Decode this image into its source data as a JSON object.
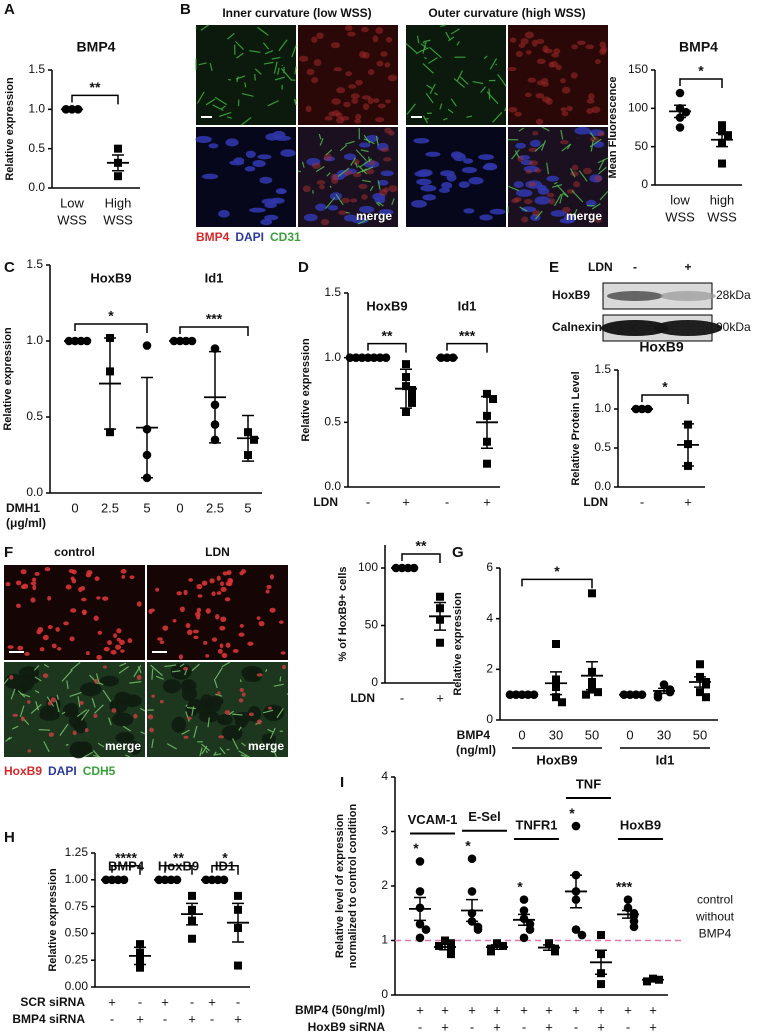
{
  "panel_labels": [
    "A",
    "B",
    "C",
    "D",
    "E",
    "F",
    "G",
    "H",
    "I"
  ],
  "images": {
    "B": {
      "columns": [
        "Inner curvature (low WSS)",
        "Outer curvature (high WSS)"
      ],
      "merge_labels": [
        "merge",
        "merge"
      ],
      "legend": [
        {
          "text": "BMP4",
          "color": "#d62728"
        },
        {
          "text": "DAPI",
          "color": "#2b3a9c"
        },
        {
          "text": "CD31",
          "color": "#3aa03a"
        }
      ]
    },
    "F": {
      "columns": [
        "control",
        "LDN"
      ],
      "merge_labels": [
        "merge",
        "merge"
      ],
      "legend": [
        {
          "text": "HoxB9",
          "color": "#d62728"
        },
        {
          "text": "DAPI",
          "color": "#2b3a9c"
        },
        {
          "text": "CDH5",
          "color": "#3aa03a"
        }
      ]
    }
  },
  "blot": {
    "treatment": "LDN",
    "lanes": [
      "-",
      "+"
    ],
    "rows": [
      "HoxB9",
      "Calnexin"
    ],
    "sizes": [
      "28kDa",
      "90kDa"
    ]
  },
  "chart_data": [
    {
      "type": "dot",
      "title": "BMP4",
      "ylabel": "Relative expression",
      "ylim": [
        0,
        1.5
      ],
      "yticks": [
        {
          "value": 0,
          "label": "0.0"
        },
        {
          "value": 0.5,
          "label": "0.5"
        },
        {
          "value": 1,
          "label": "1.0"
        },
        {
          "value": 1.5,
          "label": "1.5"
        }
      ],
      "groups": [
        {
          "marker": "circle",
          "values": [
            1,
            1,
            1
          ],
          "mean": 1,
          "sd": 0
        },
        {
          "marker": "square",
          "values": [
            0.5,
            0.32,
            0.15
          ],
          "mean": 0.32,
          "sd": 0.1
        }
      ],
      "brackets": [
        "**"
      ],
      "xrows": [
        {
          "values": [
            "Low",
            "High"
          ]
        },
        {
          "values": [
            "WSS",
            "WSS"
          ]
        }
      ]
    },
    {
      "type": "dot",
      "title": "BMP4",
      "ylabel": "Mean Fluorescence",
      "ylim": [
        0,
        150
      ],
      "yticks": [
        0,
        50,
        100,
        150
      ],
      "groups": [
        {
          "marker": "circle",
          "values": [
            120,
            100,
            95,
            88,
            75
          ],
          "mean": 96,
          "sd": 8
        },
        {
          "marker": "square",
          "values": [
            78,
            70,
            65,
            55,
            28
          ],
          "mean": 59,
          "sd": 9
        }
      ],
      "brackets": [
        "*"
      ],
      "xrows": [
        {
          "values": [
            "low",
            "high"
          ]
        },
        {
          "values": [
            "WSS",
            "WSS"
          ]
        }
      ]
    },
    {
      "type": "dot",
      "ylabel": "Relative expression",
      "ylim": [
        0,
        1.5
      ],
      "yticks": [
        {
          "value": 0,
          "label": "0.0"
        },
        {
          "value": 0.5,
          "label": "0.5"
        },
        {
          "value": 1,
          "label": "1.0"
        },
        {
          "value": 1.5,
          "label": "1.5"
        }
      ],
      "headers": [
        "HoxB9",
        "Id1"
      ],
      "groups": [
        {
          "marker": "circle",
          "values": [
            1,
            1,
            1,
            1
          ],
          "mean": 1,
          "sd": 0
        },
        {
          "marker": "square",
          "values": [
            1.02,
            0.8,
            0.4
          ],
          "mean": 0.72,
          "sd": 0.3
        },
        {
          "marker": "circle",
          "values": [
            0.97,
            0.42,
            0.25,
            0.1
          ],
          "mean": 0.43,
          "sd": 0.33
        },
        {
          "marker": "circle",
          "values": [
            1,
            1,
            1,
            1
          ],
          "mean": 1,
          "sd": 0
        },
        {
          "marker": "circle",
          "values": [
            0.95,
            0.58,
            0.45,
            0.35
          ],
          "mean": 0.63,
          "sd": 0.3
        },
        {
          "marker": "square",
          "values": [
            0.4,
            0.35,
            0.25
          ],
          "mean": 0.36,
          "sd": 0.15
        }
      ],
      "brackets": [
        "*",
        "***"
      ],
      "xrows": [
        {
          "label": "DMH1",
          "unit": "(μg/ml)",
          "values": [
            "0",
            "2.5",
            "5",
            "0",
            "2.5",
            "5"
          ]
        }
      ]
    },
    {
      "type": "dot",
      "ylabel": "Relative expression",
      "ylim": [
        0,
        1.5
      ],
      "yticks": [
        {
          "value": 0,
          "label": "0.0"
        },
        {
          "value": 0.5,
          "label": "0.5"
        },
        {
          "value": 1,
          "label": "1.0"
        },
        {
          "value": 1.5,
          "label": "1.5"
        }
      ],
      "headers": [
        "HoxB9",
        "Id1"
      ],
      "groups": [
        {
          "marker": "circle",
          "values": [
            1,
            1,
            1,
            1,
            1,
            1,
            1
          ],
          "mean": 1,
          "sd": 0
        },
        {
          "marker": "square",
          "values": [
            0.95,
            0.85,
            0.78,
            0.75,
            0.7,
            0.65,
            0.58
          ],
          "mean": 0.76,
          "sd": 0.15
        },
        {
          "marker": "circle",
          "values": [
            1,
            1,
            1
          ],
          "mean": 1,
          "sd": 0
        },
        {
          "marker": "square",
          "values": [
            0.72,
            0.68,
            0.55,
            0.35,
            0.18
          ],
          "mean": 0.5,
          "sd": 0.2
        }
      ],
      "brackets": [
        "**",
        "***"
      ],
      "xrows": [
        {
          "label": "LDN",
          "values": [
            "-",
            "+",
            "-",
            "+"
          ]
        }
      ]
    },
    {
      "type": "dot",
      "title": "HoxB9",
      "ylabel": "Relative Protein Level",
      "ylim": [
        0,
        1.5
      ],
      "yticks": [
        {
          "value": 0,
          "label": "0.0"
        },
        {
          "value": 0.5,
          "label": "0.5"
        },
        {
          "value": 1,
          "label": "1.0"
        },
        {
          "value": 1.5,
          "label": "1.5"
        }
      ],
      "groups": [
        {
          "marker": "circle",
          "values": [
            1,
            1,
            1
          ],
          "mean": 1,
          "sd": 0
        },
        {
          "marker": "square",
          "values": [
            0.8,
            0.55,
            0.27
          ],
          "mean": 0.54,
          "sd": 0.27
        }
      ],
      "brackets": [
        "*"
      ],
      "xrows": [
        {
          "label": "LDN",
          "values": [
            "-",
            "+"
          ]
        }
      ]
    },
    {
      "type": "dot",
      "ylabel": "% of HoxB9+ cells",
      "ylim": [
        0,
        120
      ],
      "yticks": [
        0,
        50,
        100
      ],
      "groups": [
        {
          "marker": "circle",
          "values": [
            100,
            100,
            100,
            100
          ],
          "mean": 100,
          "sd": 0
        },
        {
          "marker": "square",
          "values": [
            75,
            65,
            55,
            35
          ],
          "mean": 58,
          "sd": 12
        }
      ],
      "brackets": [
        "**"
      ],
      "xrows": [
        {
          "label": "LDN",
          "values": [
            "-",
            "+"
          ]
        }
      ]
    },
    {
      "type": "dot",
      "ylabel": "Relative expression",
      "ylim": [
        0,
        6
      ],
      "yticks": [
        0,
        2,
        4,
        6
      ],
      "footers": [
        "HoxB9",
        "Id1"
      ],
      "groups": [
        {
          "marker": "circle",
          "values": [
            1,
            1,
            1,
            1,
            1
          ],
          "mean": 1,
          "sd": 0
        },
        {
          "marker": "square",
          "values": [
            3.0,
            1.6,
            1.3,
            0.9,
            0.7
          ],
          "mean": 1.45,
          "sd": 0.45
        },
        {
          "marker": "square",
          "values": [
            5.0,
            1.9,
            1.5,
            1.2,
            1.1,
            1.0
          ],
          "mean": 1.75,
          "sd": 0.55
        },
        {
          "marker": "circle",
          "values": [
            1,
            1,
            1,
            1
          ],
          "mean": 1,
          "sd": 0
        },
        {
          "marker": "circle",
          "values": [
            1.4,
            1.2,
            1.1,
            1.0,
            0.9
          ],
          "mean": 1.15,
          "sd": 0.1
        },
        {
          "marker": "square",
          "values": [
            2.2,
            1.7,
            1.5,
            1.4,
            1.1,
            0.9
          ],
          "mean": 1.5,
          "sd": 0.2
        }
      ],
      "brackets": [
        "*",
        null
      ],
      "xrows": [
        {
          "label": "BMP4",
          "unit": "(ng/ml)",
          "values": [
            "0",
            "30",
            "50",
            "0",
            "30",
            "50"
          ]
        }
      ]
    },
    {
      "type": "dot",
      "ylabel": "Relative expression",
      "ylim": [
        0,
        1.25
      ],
      "yticks": [
        {
          "value": 0,
          "label": "0.00"
        },
        {
          "value": 0.25,
          "label": "0.25"
        },
        {
          "value": 0.5,
          "label": "0.50"
        },
        {
          "value": 0.75,
          "label": "0.75"
        },
        {
          "value": 1,
          "label": "1.00"
        },
        {
          "value": 1.25,
          "label": "1.25"
        }
      ],
      "headers": [
        "BMP4",
        "HoxB9",
        "ID1"
      ],
      "groups": [
        {
          "marker": "circle",
          "values": [
            1,
            1,
            1,
            1
          ],
          "mean": 1,
          "sd": 0
        },
        {
          "marker": "square",
          "values": [
            0.4,
            0.32,
            0.25,
            0.18
          ],
          "mean": 0.29,
          "sd": 0.08
        },
        {
          "marker": "circle",
          "values": [
            1,
            1,
            1,
            1
          ],
          "mean": 1,
          "sd": 0
        },
        {
          "marker": "square",
          "values": [
            0.85,
            0.72,
            0.62,
            0.45
          ],
          "mean": 0.68,
          "sd": 0.1
        },
        {
          "marker": "circle",
          "values": [
            1,
            1,
            1,
            1
          ],
          "mean": 1,
          "sd": 0
        },
        {
          "marker": "square",
          "values": [
            0.85,
            0.72,
            0.55,
            0.2
          ],
          "mean": 0.6,
          "sd": 0.18
        }
      ],
      "brackets": [
        "****",
        "**",
        "*"
      ],
      "xrows": [
        {
          "label": "SCR siRNA",
          "values": [
            "+",
            "-",
            "+",
            "-",
            "+",
            "-"
          ]
        },
        {
          "label": "BMP4 siRNA",
          "values": [
            "-",
            "+",
            "-",
            "+",
            "-",
            "+"
          ]
        }
      ]
    },
    {
      "type": "dot",
      "ylabel": [
        "Relative level of expression",
        "normalized to control condition"
      ],
      "ylim": [
        0,
        4
      ],
      "yticks": [
        0,
        1,
        2,
        3,
        4
      ],
      "headers": [
        "VCAM-1",
        "E-Sel",
        "TNFR1",
        "TNF",
        "HoxB9"
      ],
      "header_bars": true,
      "groups": [
        {
          "marker": "circle",
          "values": [
            2.45,
            1.9,
            1.6,
            1.3,
            1.2,
            1.05
          ],
          "mean": 1.58,
          "sd": 0.21
        },
        {
          "marker": "square",
          "values": [
            1.0,
            0.95,
            0.9,
            0.8,
            0.75
          ],
          "mean": 0.88,
          "sd": 0.05
        },
        {
          "marker": "circle",
          "values": [
            2.5,
            1.9,
            1.5,
            1.35,
            1.25,
            1.2
          ],
          "mean": 1.55,
          "sd": 0.2
        },
        {
          "marker": "square",
          "values": [
            0.95,
            0.9,
            0.85,
            0.8
          ],
          "mean": 0.88,
          "sd": 0.04
        },
        {
          "marker": "circle",
          "values": [
            1.75,
            1.55,
            1.4,
            1.3,
            1.2,
            1.05
          ],
          "mean": 1.38,
          "sd": 0.1
        },
        {
          "marker": "square",
          "values": [
            0.95,
            0.85,
            0.8
          ],
          "mean": 0.87,
          "sd": 0.05
        },
        {
          "marker": "circle",
          "values": [
            3.1,
            2.2,
            1.9,
            1.75,
            1.2,
            1.1
          ],
          "mean": 1.9,
          "sd": 0.3
        },
        {
          "marker": "square",
          "values": [
            1.1,
            0.75,
            0.4,
            0.2
          ],
          "mean": 0.6,
          "sd": 0.22
        },
        {
          "marker": "circle",
          "values": [
            1.75,
            1.6,
            1.5,
            1.45,
            1.35,
            1.25
          ],
          "mean": 1.48,
          "sd": 0.07
        },
        {
          "marker": "square",
          "values": [
            0.3,
            0.28,
            0.25
          ],
          "mean": 0.28,
          "sd": 0.02
        }
      ],
      "group_labels": [
        "*",
        null,
        "*",
        null,
        "*",
        null,
        "*",
        null,
        "***",
        null
      ],
      "refline": {
        "value": 1,
        "color": "#e377b5",
        "label": [
          "control",
          "without",
          "BMP4"
        ]
      },
      "xrows": [
        {
          "label": "BMP4 (50ng/ml)",
          "values": [
            "+",
            "+",
            "+",
            "+",
            "+",
            "+",
            "+",
            "+",
            "+",
            "+"
          ]
        },
        {
          "label": "HoxB9 siRNA",
          "values": [
            "-",
            "+",
            "-",
            "+",
            "-",
            "+",
            "-",
            "+",
            "-",
            "+"
          ]
        }
      ]
    }
  ]
}
